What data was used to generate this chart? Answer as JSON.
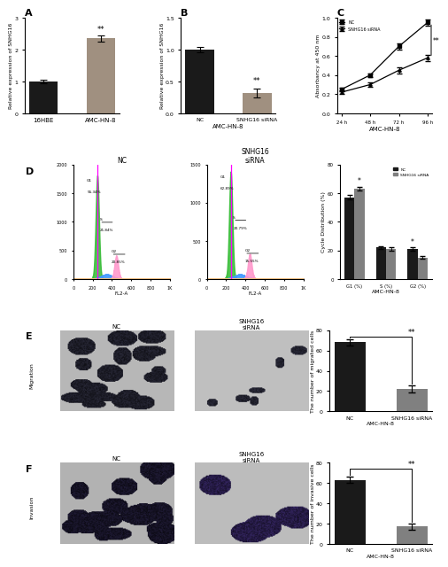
{
  "panel_A": {
    "categories": [
      "16HBE",
      "AMC-HN-8"
    ],
    "values": [
      1.0,
      2.35
    ],
    "errors": [
      0.05,
      0.09
    ],
    "colors": [
      "#1a1a1a",
      "#a09080"
    ],
    "ylabel": "Relative expression of SNHG16",
    "title": "A",
    "ylim": [
      0,
      3
    ],
    "yticks": [
      0,
      1,
      2,
      3
    ],
    "sig_label": "**"
  },
  "panel_B": {
    "categories": [
      "NC",
      "SNHG16 siRNA"
    ],
    "values": [
      1.0,
      0.32
    ],
    "errors": [
      0.04,
      0.07
    ],
    "colors": [
      "#1a1a1a",
      "#a09080"
    ],
    "ylabel": "Relative expression of SNHG16",
    "xlabel": "AMC-HN-8",
    "title": "B",
    "ylim": [
      0,
      1.5
    ],
    "yticks": [
      0.0,
      0.5,
      1.0,
      1.5
    ],
    "sig_label": "**"
  },
  "panel_C": {
    "x": [
      24,
      48,
      72,
      96
    ],
    "nc_values": [
      0.25,
      0.4,
      0.7,
      0.95
    ],
    "sirna_values": [
      0.22,
      0.3,
      0.45,
      0.58
    ],
    "nc_errors": [
      0.02,
      0.02,
      0.03,
      0.03
    ],
    "sirna_errors": [
      0.02,
      0.02,
      0.03,
      0.03
    ],
    "xlabel": "AMC-HN-8",
    "ylabel": "Absorbancy at 450 nm",
    "title": "C",
    "ylim": [
      0.0,
      1.0
    ],
    "yticks": [
      0.0,
      0.2,
      0.4,
      0.6,
      0.8,
      1.0
    ],
    "sig_label": "**"
  },
  "panel_D_bar": {
    "categories": [
      "G1 (%)",
      "S (%)",
      "G2 (%)"
    ],
    "nc_values": [
      57.0,
      22.0,
      21.0
    ],
    "sirna_values": [
      63.0,
      21.0,
      15.0
    ],
    "nc_errors": [
      1.5,
      1.0,
      1.0
    ],
    "sirna_errors": [
      1.5,
      1.0,
      1.0
    ],
    "nc_color": "#1a1a1a",
    "sirna_color": "#808080",
    "ylabel": "Cycle Distribution (%)",
    "xlabel": "AMC-HN-8",
    "title": "D",
    "ylim": [
      0,
      80
    ],
    "yticks": [
      0,
      20,
      40,
      60,
      80
    ],
    "sig_G1": "*",
    "sig_G2": "*"
  },
  "panel_E_bar": {
    "categories": [
      "NC",
      "SNHG16 siRNA"
    ],
    "values": [
      68.0,
      22.0
    ],
    "errors": [
      3.0,
      3.5
    ],
    "colors": [
      "#1a1a1a",
      "#808080"
    ],
    "ylabel": "The number of migrated cells",
    "xlabel": "AMC-HN-8",
    "ylim": [
      0,
      80
    ],
    "yticks": [
      0,
      20,
      40,
      60,
      80
    ],
    "sig_label": "**"
  },
  "panel_F_bar": {
    "categories": [
      "NC",
      "SNHG16 siRNA"
    ],
    "values": [
      63.0,
      17.0
    ],
    "errors": [
      3.0,
      3.0
    ],
    "colors": [
      "#1a1a1a",
      "#808080"
    ],
    "ylabel": "The number of invasive cells",
    "xlabel": "AMC-HN-8",
    "ylim": [
      0,
      80
    ],
    "yticks": [
      0,
      20,
      40,
      60,
      80
    ],
    "sig_label": "**"
  },
  "flow_NC": {
    "G1_pct": "55.34%",
    "S_pct": "21.84%",
    "G2_pct": "20.85%",
    "ylim_max": 2000,
    "yticks": [
      0,
      500,
      1000,
      1500,
      2000
    ],
    "g1_peak": 1800,
    "g2_peak": 400
  },
  "flow_siRNA": {
    "G1_pct": "62.89%",
    "S_pct": "20.79%",
    "G2_pct": "15.55%",
    "ylim_max": 1500,
    "yticks": [
      0,
      500,
      1000,
      1500
    ],
    "g1_peak": 1400,
    "g2_peak": 320
  },
  "background_color": "#ffffff"
}
